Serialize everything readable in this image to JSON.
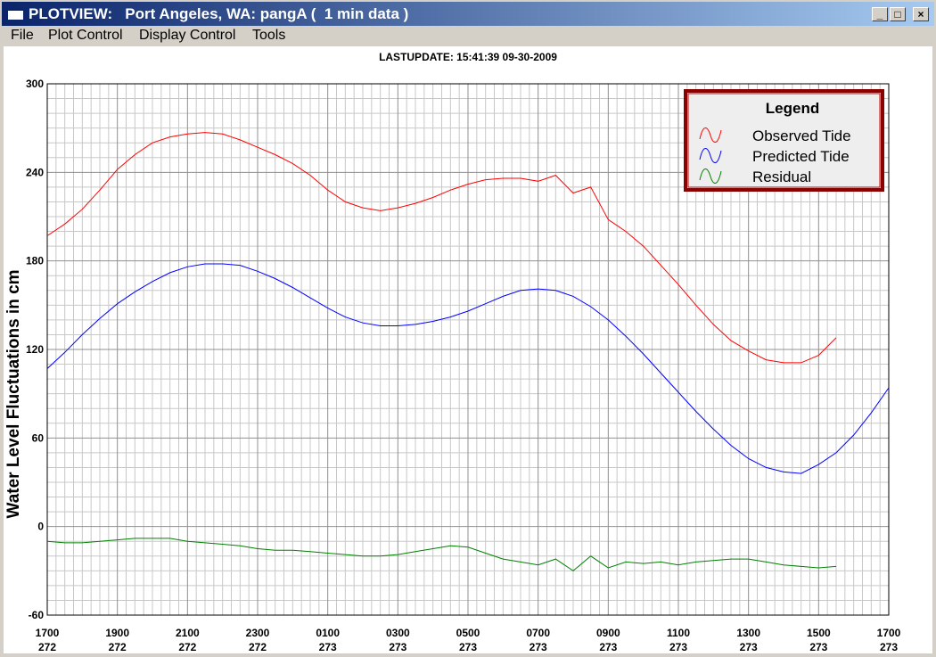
{
  "window": {
    "title": "PLOTVIEW:   Port Angeles, WA: pangA (  1 min data )"
  },
  "menu": [
    "File",
    "Plot Control",
    "Display Control",
    "Tools"
  ],
  "chart_data": {
    "type": "line",
    "title": "LASTUPDATE: 15:41:39  09-30-2009",
    "y_label": "Water Level Fluctuations in cm",
    "legend_title": "Legend",
    "legend": "top-right",
    "grid": true,
    "xlim": [
      0,
      24
    ],
    "xticks": [
      {
        "value": 0,
        "label": "1700",
        "sublabel": "272"
      },
      {
        "value": 2,
        "label": "1900",
        "sublabel": "272"
      },
      {
        "value": 4,
        "label": "2100",
        "sublabel": "272"
      },
      {
        "value": 6,
        "label": "2300",
        "sublabel": "272"
      },
      {
        "value": 8,
        "label": "0100",
        "sublabel": "273"
      },
      {
        "value": 10,
        "label": "0300",
        "sublabel": "273"
      },
      {
        "value": 12,
        "label": "0500",
        "sublabel": "273"
      },
      {
        "value": 14,
        "label": "0700",
        "sublabel": "273"
      },
      {
        "value": 16,
        "label": "0900",
        "sublabel": "273"
      },
      {
        "value": 18,
        "label": "1100",
        "sublabel": "273"
      },
      {
        "value": 20,
        "label": "1300",
        "sublabel": "273"
      },
      {
        "value": 22,
        "label": "1500",
        "sublabel": "273"
      },
      {
        "value": 24,
        "label": "1700",
        "sublabel": "273"
      }
    ],
    "ylim": [
      -60,
      300
    ],
    "yticks": [
      -60,
      0,
      60,
      120,
      180,
      240,
      300
    ],
    "x": [
      0,
      0.5,
      1,
      1.5,
      2,
      2.5,
      3,
      3.5,
      4,
      4.5,
      5,
      5.5,
      6,
      6.5,
      7,
      7.5,
      8,
      8.5,
      9,
      9.5,
      10,
      10.5,
      11,
      11.5,
      12,
      12.5,
      13,
      13.5,
      14,
      14.5,
      15,
      15.5,
      16,
      16.5,
      17,
      17.5,
      18,
      18.5,
      19,
      19.5,
      20,
      20.5,
      21,
      21.5,
      22,
      22.5,
      23,
      23.5,
      24
    ],
    "series": [
      {
        "name": "Observed Tide",
        "color": "#ff0000",
        "values": [
          197,
          205,
          215,
          228,
          242,
          252,
          260,
          264,
          266,
          267,
          266,
          262,
          257,
          252,
          246,
          238,
          228,
          220,
          216,
          214,
          216,
          219,
          223,
          228,
          232,
          235,
          236,
          236,
          234,
          238,
          226,
          230,
          208,
          200,
          190,
          177,
          164,
          150,
          137,
          126,
          119,
          113,
          111,
          111,
          116,
          128,
          null,
          null,
          null
        ]
      },
      {
        "name": "Predicted Tide",
        "color": "#0000ff",
        "values": [
          107,
          118,
          130,
          141,
          151,
          159,
          166,
          172,
          176,
          178,
          178,
          177,
          173,
          168,
          162,
          155,
          148,
          142,
          138,
          136,
          136,
          137,
          139,
          142,
          146,
          151,
          156,
          160,
          161,
          160,
          156,
          149,
          140,
          129,
          117,
          104,
          91,
          78,
          66,
          55,
          46,
          40,
          37,
          36,
          42,
          50,
          62,
          77,
          94
        ]
      },
      {
        "name": "Residual",
        "color": "#008000",
        "values": [
          -10,
          -11,
          -11,
          -10,
          -9,
          -8,
          -8,
          -8,
          -10,
          -11,
          -12,
          -13,
          -15,
          -16,
          -16,
          -17,
          -18,
          -19,
          -20,
          -20,
          -19,
          -17,
          -15,
          -13,
          -14,
          -18,
          -22,
          -24,
          -26,
          -22,
          -30,
          -20,
          -28,
          -24,
          -25,
          -24,
          -26,
          -24,
          -23,
          -22,
          -22,
          -24,
          -26,
          -27,
          -28,
          -27,
          null,
          null,
          null
        ]
      }
    ]
  }
}
